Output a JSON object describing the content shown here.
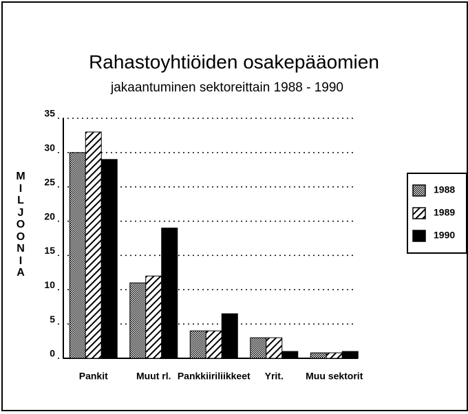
{
  "chart_data": {
    "type": "bar",
    "title": "Rahastoyhtiöiden osakepääomien",
    "subtitle": "jakaantuminen sektoreittain 1988 - 1990",
    "y_label": "MILJOONIA",
    "categories": [
      "Pankit",
      "Muut rl.",
      "Pankkiiriliikkeet",
      "Yrit.",
      "Muu sektorit"
    ],
    "series": [
      {
        "name": "1988",
        "color": "#000000",
        "pattern": "checker",
        "values": [
          30,
          11,
          4,
          3,
          0.8
        ]
      },
      {
        "name": "1989",
        "color": "#000000",
        "pattern": "diagonal",
        "values": [
          33,
          12,
          4,
          3,
          0.8
        ]
      },
      {
        "name": "1990",
        "color": "#000000",
        "pattern": "solid",
        "values": [
          29,
          19,
          6.5,
          1,
          1
        ]
      }
    ],
    "ylim": [
      0,
      35
    ],
    "yticks": [
      0,
      5,
      10,
      15,
      20,
      25,
      30,
      35
    ],
    "grid": true,
    "legend": "right"
  }
}
